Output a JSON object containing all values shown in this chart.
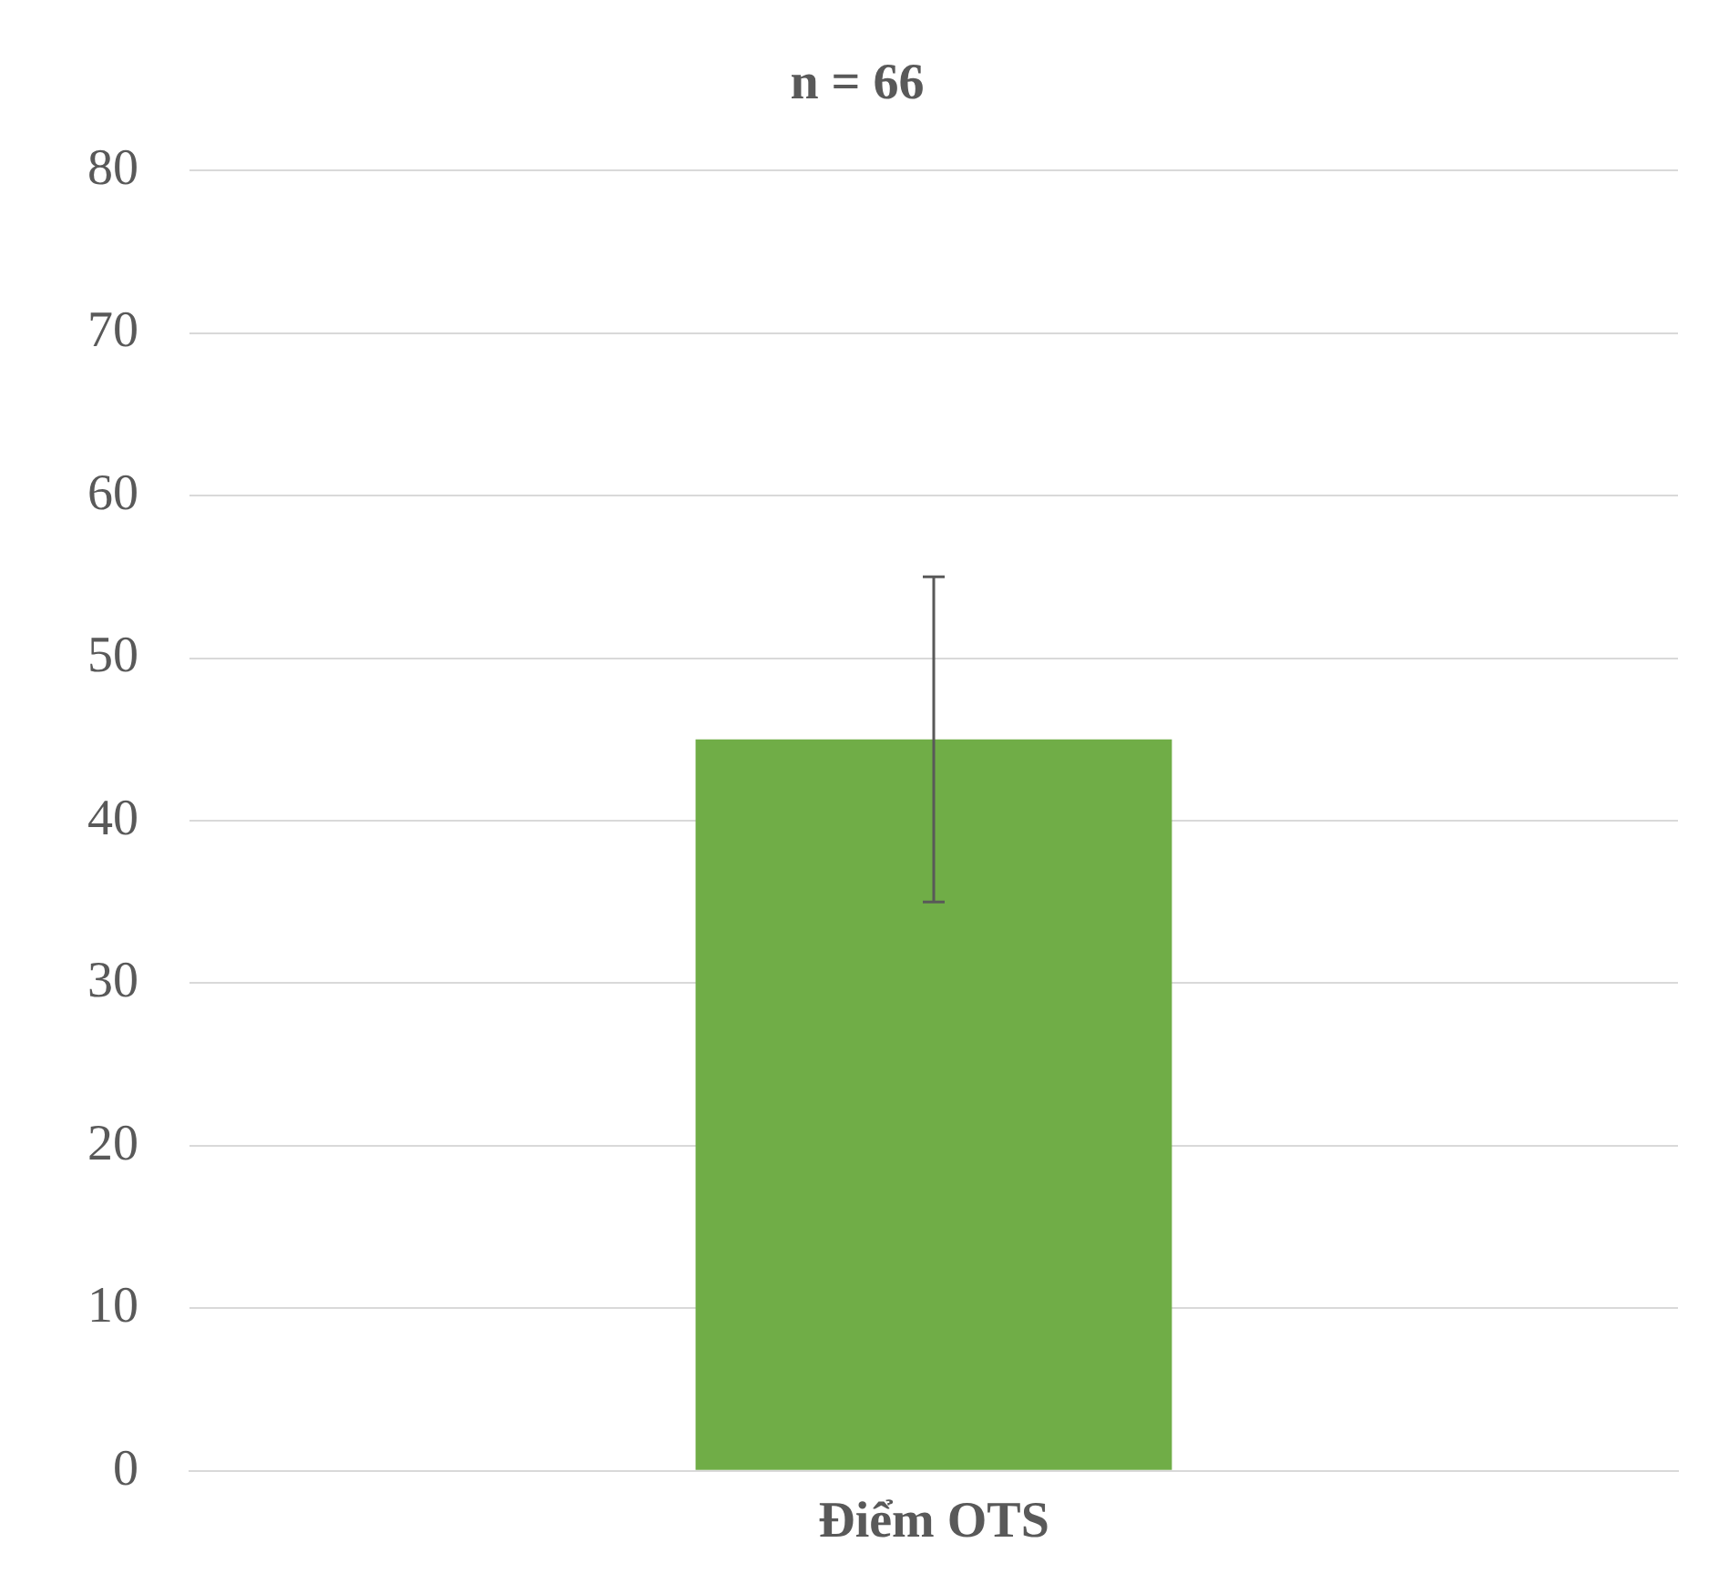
{
  "chart_data": {
    "type": "bar",
    "title": "n = 66",
    "categories": [
      "Điểm OTS"
    ],
    "values": [
      45
    ],
    "errors": [
      10
    ],
    "color": "#70ad47",
    "ylim": [
      0,
      80
    ],
    "yticks": [
      0,
      10,
      20,
      30,
      40,
      50,
      60,
      70,
      80
    ],
    "grid": "y",
    "legend": false
  }
}
